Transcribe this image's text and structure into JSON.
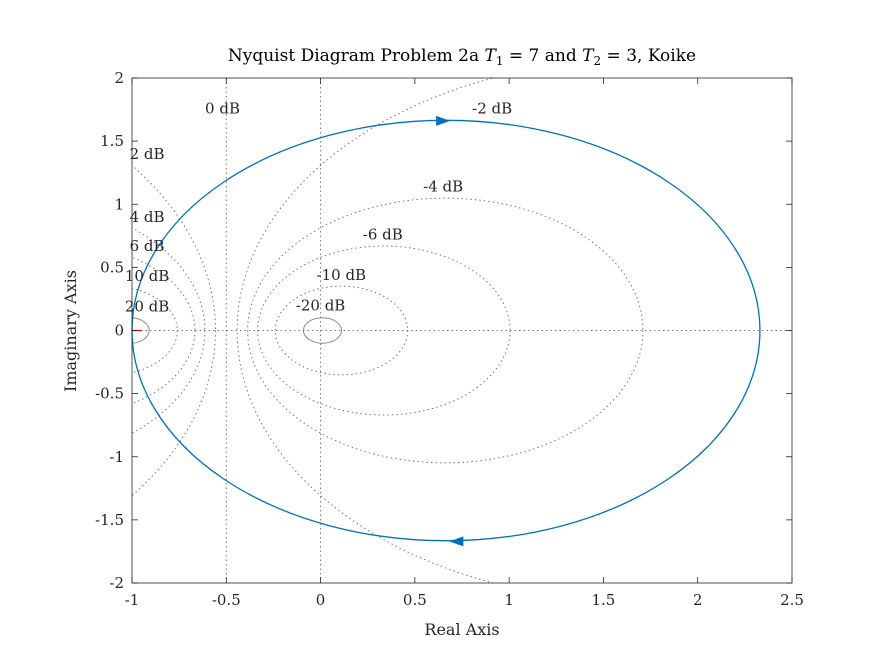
{
  "chart_data": {
    "type": "line",
    "title_parts": {
      "prefix": "Nyquist Diagram Problem 2a",
      "t1_symbol": "T",
      "t1_sub": "1",
      "t1_value": "= 7 and",
      "t2_symbol": "T",
      "t2_sub": "2",
      "t2_value": "= 3, Koike"
    },
    "xlabel": "Real Axis",
    "ylabel": "Imaginary Axis",
    "xlim": [
      -1,
      2.5
    ],
    "ylim": [
      -2,
      2
    ],
    "xticks": [
      -1,
      -0.5,
      0,
      0.5,
      1,
      1.5,
      2,
      2.5
    ],
    "xtick_labels": [
      "-1",
      "-0.5",
      "0",
      "0.5",
      "1",
      "1.5",
      "2",
      "2.5"
    ],
    "yticks": [
      -2,
      -1.5,
      -1,
      -0.5,
      0,
      0.5,
      1,
      1.5,
      2
    ],
    "ytick_labels": [
      "-2",
      "-1.5",
      "-1",
      "-0.5",
      "0",
      "0.5",
      "1",
      "1.5",
      "2"
    ],
    "grid": "M-circles (dotted)",
    "m_circle_labels": [
      {
        "text": "0 dB",
        "db": 0,
        "x": -0.52,
        "y": 1.76
      },
      {
        "text": "-2 dB",
        "db": -2,
        "x": 0.91,
        "y": 1.76
      },
      {
        "text": "2 dB",
        "db": 2,
        "x": -0.92,
        "y": 1.4
      },
      {
        "text": "-4 dB",
        "db": -4,
        "x": 0.65,
        "y": 1.14
      },
      {
        "text": "4 dB",
        "db": 4,
        "x": -0.92,
        "y": 0.9
      },
      {
        "text": "-6 dB",
        "db": -6,
        "x": 0.33,
        "y": 0.76
      },
      {
        "text": "6 dB",
        "db": 6,
        "x": -0.92,
        "y": 0.67
      },
      {
        "text": "-10 dB",
        "db": -10,
        "x": 0.11,
        "y": 0.44
      },
      {
        "text": "10 dB",
        "db": 10,
        "x": -0.92,
        "y": 0.43
      },
      {
        "text": "-20 dB",
        "db": -20,
        "x": 0.0,
        "y": 0.2
      },
      {
        "text": "20 dB",
        "db": 20,
        "x": -0.92,
        "y": 0.19
      }
    ],
    "m_circles_db": [
      20,
      10,
      6,
      4,
      2,
      0,
      -2,
      -4,
      -6,
      -10,
      -20
    ],
    "series": [
      {
        "color": "#0072BD",
        "shape": "ellipse",
        "center": [
          0.665,
          0
        ],
        "semi_axes": [
          1.665,
          1.665
        ],
        "points": [
          [
            -1,
            0
          ],
          [
            0.665,
            1.665
          ],
          [
            2.33,
            0
          ],
          [
            0.665,
            -1.665
          ]
        ],
        "arrows": [
          {
            "x": 0.65,
            "y": 1.66,
            "direction": "right"
          },
          {
            "x": 0.72,
            "y": -1.67,
            "direction": "left"
          }
        ]
      }
    ],
    "critical_point": {
      "x": -1,
      "y": 0,
      "marker": "+",
      "color": "#FF0000"
    },
    "colors": {
      "curve": "#0072BD",
      "grid": "#777777",
      "axes": "#262626",
      "critical": "#FF0000"
    }
  }
}
